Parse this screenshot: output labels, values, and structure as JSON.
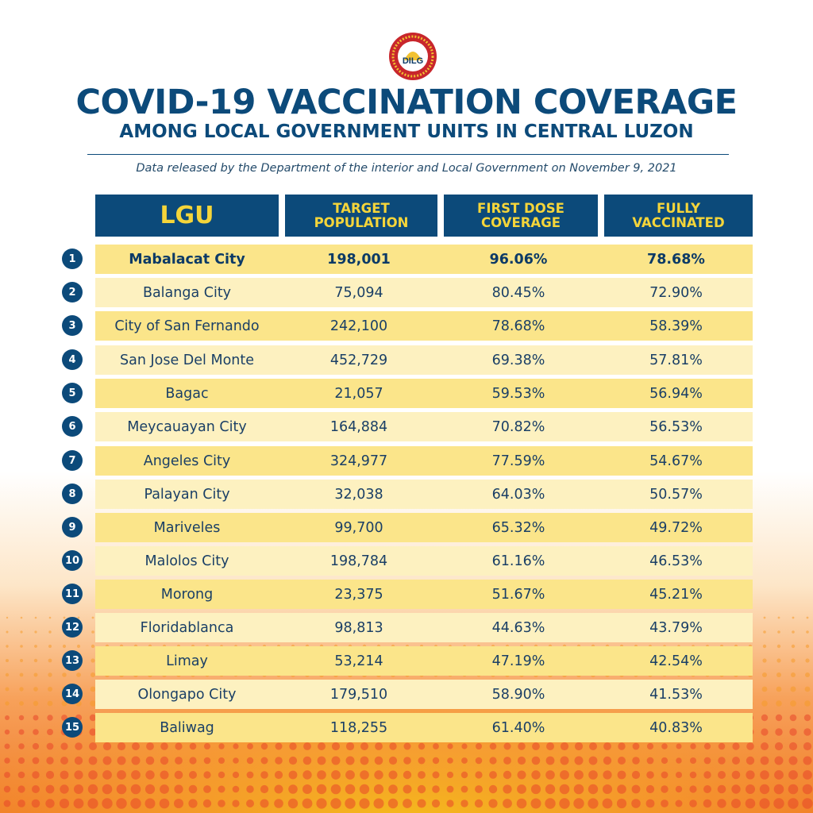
{
  "header": {
    "logo_text": "DILG",
    "title": "COVID-19 VACCINATION COVERAGE",
    "subtitle": "AMONG LOCAL GOVERNMENT UNITS IN CENTRAL LUZON",
    "note": "Data released by the Department of the interior and Local Government on November 9, 2021"
  },
  "colors": {
    "navy": "#0c4a7a",
    "gold": "#f5d53a",
    "row_dark": "#fbe58a",
    "row_light": "#fdf1c0"
  },
  "chart_data": {
    "type": "table",
    "columns": [
      "LGU",
      "TARGET POPULATION",
      "FIRST DOSE COVERAGE",
      "FULLY VACCINATED"
    ],
    "rows": [
      {
        "rank": "1",
        "lgu": "Mabalacat City",
        "target": "198,001",
        "first": "96.06%",
        "full": "78.68%"
      },
      {
        "rank": "2",
        "lgu": "Balanga City",
        "target": "75,094",
        "first": "80.45%",
        "full": "72.90%"
      },
      {
        "rank": "3",
        "lgu": "City of San Fernando",
        "target": "242,100",
        "first": "78.68%",
        "full": "58.39%"
      },
      {
        "rank": "4",
        "lgu": "San Jose Del Monte",
        "target": "452,729",
        "first": "69.38%",
        "full": "57.81%"
      },
      {
        "rank": "5",
        "lgu": "Bagac",
        "target": "21,057",
        "first": "59.53%",
        "full": "56.94%"
      },
      {
        "rank": "6",
        "lgu": "Meycauayan City",
        "target": "164,884",
        "first": "70.82%",
        "full": "56.53%"
      },
      {
        "rank": "7",
        "lgu": "Angeles City",
        "target": "324,977",
        "first": "77.59%",
        "full": "54.67%"
      },
      {
        "rank": "8",
        "lgu": "Palayan City",
        "target": "32,038",
        "first": "64.03%",
        "full": "50.57%"
      },
      {
        "rank": "9",
        "lgu": "Mariveles",
        "target": "99,700",
        "first": "65.32%",
        "full": "49.72%"
      },
      {
        "rank": "10",
        "lgu": "Malolos City",
        "target": "198,784",
        "first": "61.16%",
        "full": "46.53%"
      },
      {
        "rank": "11",
        "lgu": "Morong",
        "target": "23,375",
        "first": "51.67%",
        "full": "45.21%"
      },
      {
        "rank": "12",
        "lgu": "Floridablanca",
        "target": "98,813",
        "first": "44.63%",
        "full": "43.79%"
      },
      {
        "rank": "13",
        "lgu": "Limay",
        "target": "53,214",
        "first": "47.19%",
        "full": "42.54%"
      },
      {
        "rank": "14",
        "lgu": "Olongapo City",
        "target": "179,510",
        "first": "58.90%",
        "full": "41.53%"
      },
      {
        "rank": "15",
        "lgu": "Baliwag",
        "target": "118,255",
        "first": "61.40%",
        "full": "40.83%"
      }
    ]
  }
}
